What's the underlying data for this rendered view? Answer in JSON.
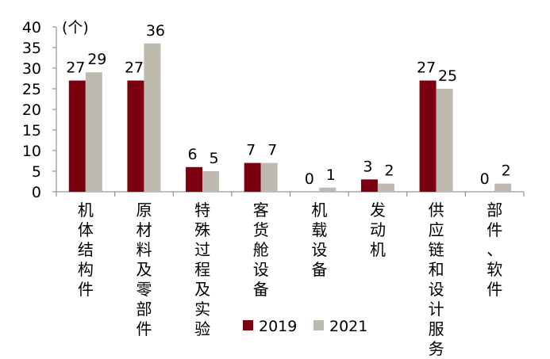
{
  "chart_data": {
    "type": "bar",
    "title": "",
    "unit_label": "(个)",
    "ylim": [
      0,
      40
    ],
    "yticks": [
      0,
      5,
      10,
      15,
      20,
      25,
      30,
      35,
      40
    ],
    "categories": [
      "机体结构件",
      "原材料及零部件",
      "特殊过程及实验",
      "客货舱设备",
      "机载设备",
      "发动机",
      "供应链和设计服务",
      "部件、软件"
    ],
    "series": [
      {
        "name": "2019",
        "values": [
          27,
          27,
          6,
          7,
          0,
          3,
          27,
          0
        ]
      },
      {
        "name": "2021",
        "values": [
          29,
          36,
          5,
          7,
          1,
          2,
          25,
          2
        ]
      }
    ],
    "legend_position": "bottom-right",
    "grid": false,
    "colors": {
      "2019": "#7b0010",
      "2021": "#bebab0"
    }
  }
}
